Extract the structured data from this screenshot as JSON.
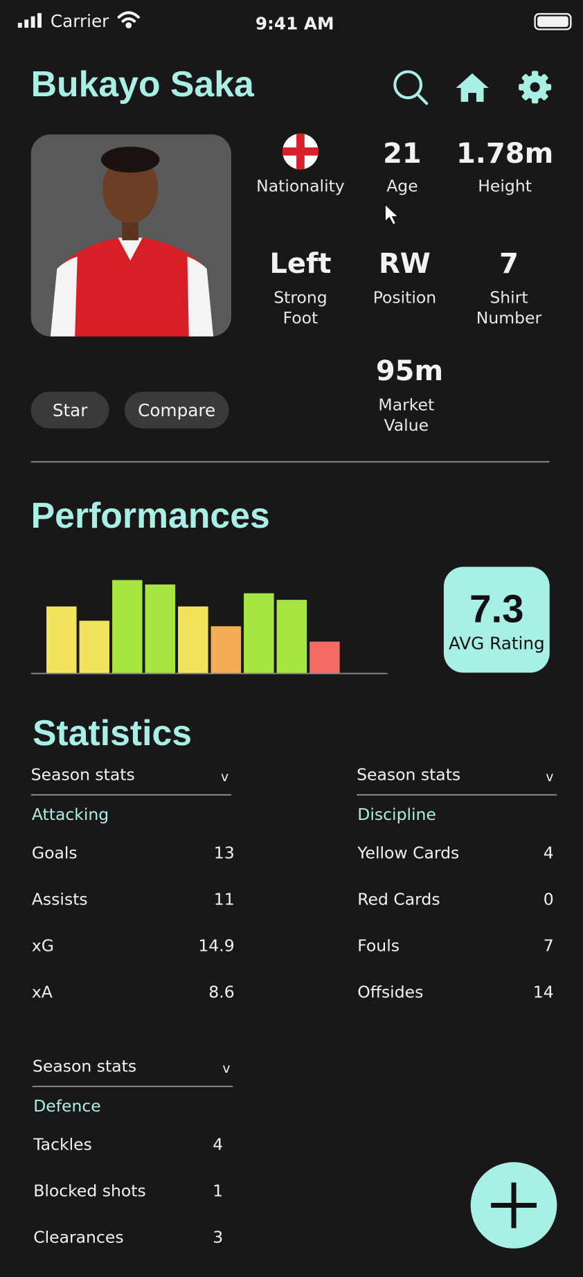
{
  "status_bar": {
    "carrier": "Carrier",
    "time": "9:41 AM"
  },
  "header": {
    "title": "Bukayo Saka"
  },
  "facts": [
    {
      "label": [
        "Nationality"
      ]
    },
    {
      "value": 21,
      "label": [
        "Age"
      ]
    },
    {
      "value": "1.78m",
      "label": [
        "Height"
      ]
    },
    {
      "value": "Left",
      "label": [
        "Strong",
        "Foot"
      ]
    },
    {
      "value": "RW",
      "label": [
        "Position"
      ]
    },
    {
      "value": 7,
      "label": [
        "Shirt",
        "Number"
      ]
    },
    {
      "value": "95m",
      "label": [
        "Market",
        "Value"
      ]
    }
  ],
  "buttons": [
    "Star",
    "Compare"
  ],
  "performances": {
    "title": "Performances",
    "avg_rating": 7.3,
    "avg_label": "AVG Rating"
  },
  "chart_data": {
    "type": "bar",
    "values": [
      6.1,
      4.8,
      8.5,
      8.1,
      6.1,
      4.3,
      7.3,
      6.7,
      2.9
    ],
    "colors": [
      "#f2e35c",
      "#f2e35c",
      "#a6e640",
      "#a6e640",
      "#f2e35c",
      "#f5ad55",
      "#a6e640",
      "#a6e640",
      "#f56b66"
    ],
    "ylim": [
      0,
      10
    ]
  },
  "statistics": {
    "title": "Statistics",
    "panels": [
      {
        "dropdown": "Season stats",
        "caret": "v",
        "heading": "Attacking",
        "rows": [
          [
            "Goals",
            13
          ],
          [
            "Assists",
            11
          ],
          [
            "xG",
            14.9
          ],
          [
            "xA",
            8.6
          ]
        ]
      },
      {
        "dropdown": "Season stats",
        "caret": "v",
        "heading": "Discipline",
        "rows": [
          [
            "Yellow Cards",
            4
          ],
          [
            "Red Cards",
            0
          ],
          [
            "Fouls",
            7
          ],
          [
            "Offsides",
            14
          ]
        ]
      },
      {
        "dropdown": "Season stats",
        "caret": "v",
        "heading": "Defence",
        "rows": [
          [
            "Tackles",
            4
          ],
          [
            "Blocked shots",
            1
          ],
          [
            "Clearances",
            3
          ]
        ]
      }
    ]
  }
}
